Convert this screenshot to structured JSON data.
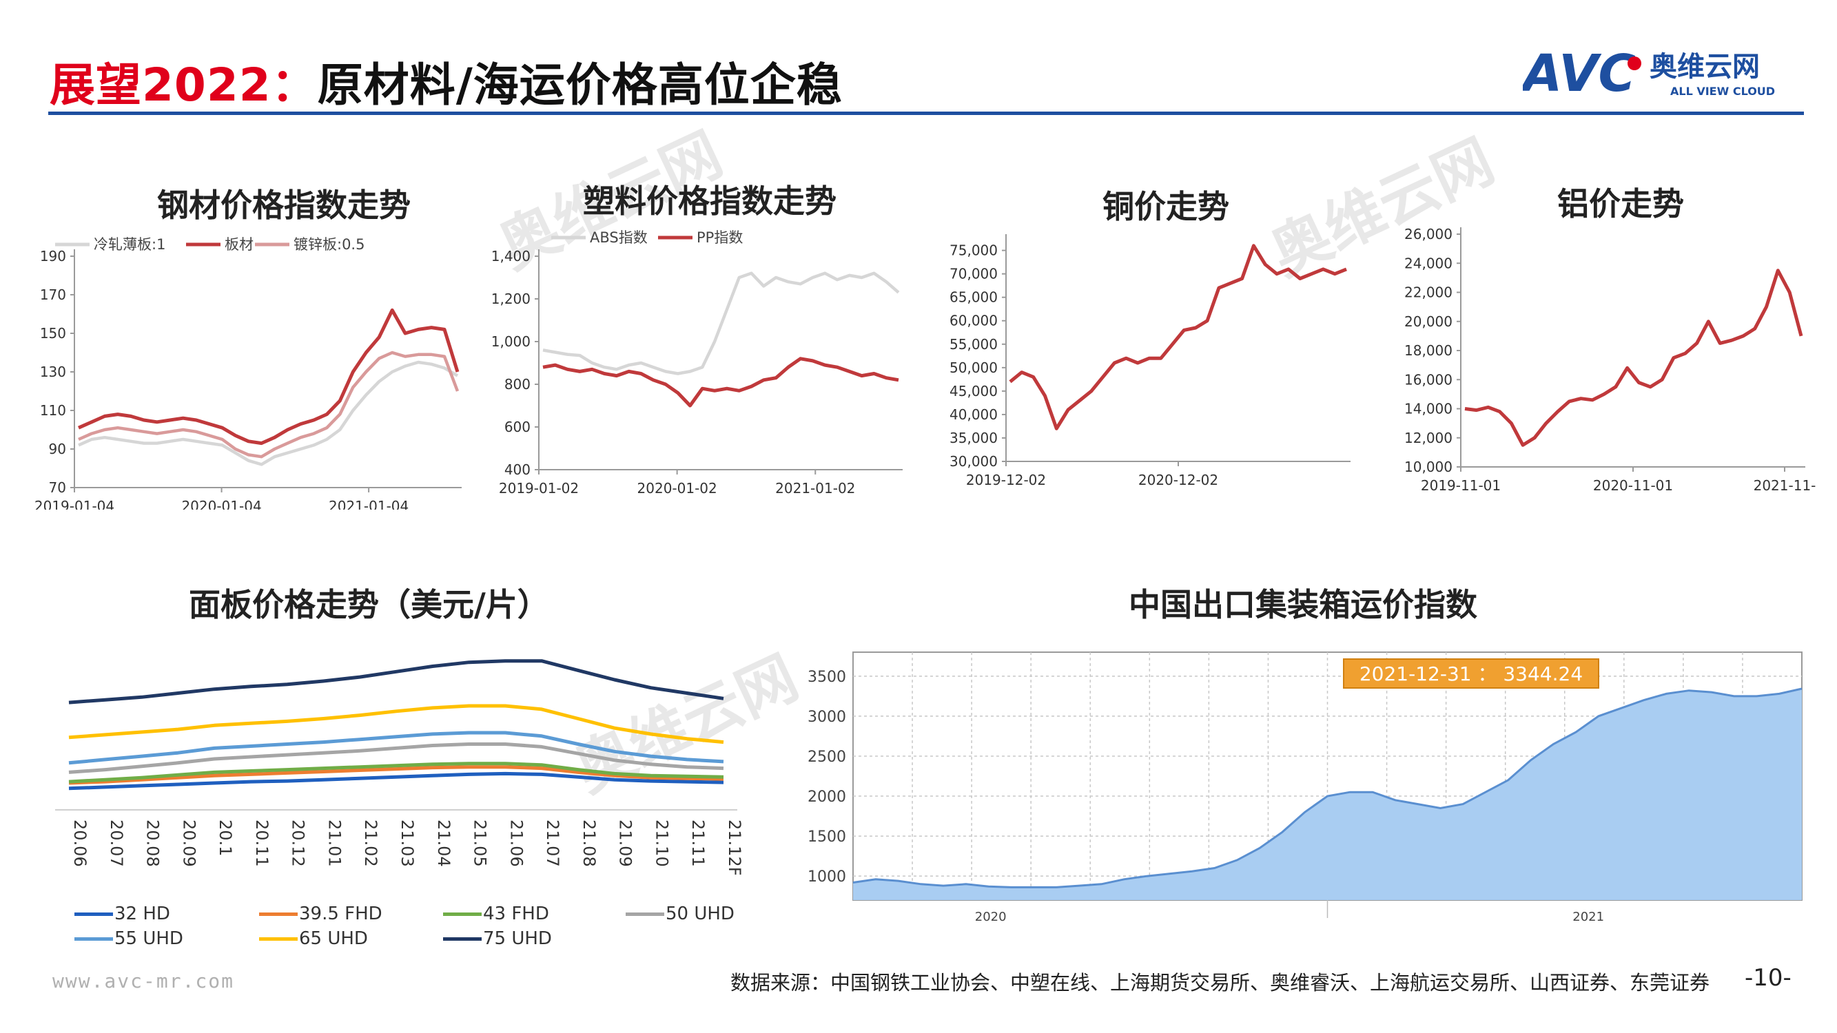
{
  "header": {
    "title_highlight": "展望2022：",
    "title_rest": "原材料/海运价格高位企稳",
    "logo_text_cn": "奥维云网",
    "logo_text_en": "ALL VIEW CLOUD",
    "logo_mark": "AVC"
  },
  "footer": {
    "website": "www.avc-mr.com",
    "source": "数据来源：中国钢铁工业协会、中塑在线、上海期货交易所、奥维睿沃、上海航运交易所、山西证券、东莞证券",
    "page": "-10-"
  },
  "watermark": {
    "text_cn": "奥维云网",
    "text_en": "VIEW CLOUD",
    "mark": "AVC"
  },
  "colors": {
    "accent_red": "#e0001b",
    "rule_blue": "#1e4fa0",
    "line_red": "#c0393b",
    "line_pink": "#d99a9a",
    "line_grey": "#d6d6d6",
    "area_blue": "#a9cdf2"
  },
  "chart_data": [
    {
      "type": "line",
      "title": "钢材价格指数走势",
      "x_ticks": [
        "2019-01-04",
        "2020-01-04",
        "2021-01-04"
      ],
      "y_ticks": [
        "70",
        "90",
        "110",
        "130",
        "150",
        "170",
        "190"
      ],
      "ylim": [
        70,
        190
      ],
      "legend_position": "top",
      "series": [
        {
          "name": "冷轧薄板:1",
          "color": "#d6d6d6",
          "values": [
            92,
            95,
            96,
            95,
            94,
            93,
            93,
            94,
            95,
            94,
            93,
            92,
            88,
            84,
            82,
            86,
            88,
            90,
            92,
            95,
            100,
            110,
            118,
            125,
            130,
            133,
            135,
            134,
            132,
            128
          ]
        },
        {
          "name": "板材",
          "color": "#c0393b",
          "values": [
            101,
            104,
            107,
            108,
            107,
            105,
            104,
            105,
            106,
            105,
            103,
            101,
            97,
            94,
            93,
            96,
            100,
            103,
            105,
            108,
            115,
            130,
            140,
            148,
            162,
            150,
            152,
            153,
            152,
            130
          ]
        },
        {
          "name": "镀锌板:0.5",
          "color": "#d99a9a",
          "values": [
            95,
            98,
            100,
            101,
            100,
            99,
            98,
            99,
            100,
            99,
            97,
            95,
            90,
            87,
            86,
            90,
            93,
            96,
            98,
            101,
            108,
            122,
            130,
            137,
            140,
            138,
            139,
            139,
            138,
            120
          ]
        }
      ]
    },
    {
      "type": "line",
      "title": "塑料价格指数走势",
      "x_ticks": [
        "2019-01-02",
        "2020-01-02",
        "2021-01-02"
      ],
      "y_ticks": [
        "400",
        "600",
        "800",
        "1,000",
        "1,200",
        "1,400"
      ],
      "ylim": [
        400,
        1400
      ],
      "legend_position": "top",
      "series": [
        {
          "name": "ABS指数",
          "color": "#d6d6d6",
          "values": [
            960,
            950,
            940,
            935,
            900,
            880,
            870,
            890,
            900,
            880,
            860,
            850,
            860,
            880,
            1000,
            1150,
            1300,
            1320,
            1260,
            1300,
            1280,
            1270,
            1300,
            1320,
            1290,
            1310,
            1300,
            1320,
            1280,
            1230
          ]
        },
        {
          "name": "PP指数",
          "color": "#c0393b",
          "values": [
            880,
            890,
            870,
            860,
            870,
            850,
            840,
            860,
            850,
            820,
            800,
            760,
            700,
            780,
            770,
            780,
            770,
            790,
            820,
            830,
            880,
            920,
            910,
            890,
            880,
            860,
            840,
            850,
            830,
            820
          ]
        }
      ]
    },
    {
      "type": "line",
      "title": "铜价走势",
      "x_ticks": [
        "2019-12-02",
        "2020-12-02"
      ],
      "y_ticks": [
        "30,000",
        "35,000",
        "40,000",
        "45,000",
        "50,000",
        "55,000",
        "60,000",
        "65,000",
        "70,000",
        "75,000"
      ],
      "ylim": [
        30000,
        77000
      ],
      "series": [
        {
          "name": "",
          "color": "#c0393b",
          "values": [
            47000,
            49000,
            48000,
            44000,
            37000,
            41000,
            43000,
            45000,
            48000,
            51000,
            52000,
            51000,
            52000,
            52000,
            55000,
            58000,
            58500,
            60000,
            67000,
            68000,
            69000,
            76000,
            72000,
            70000,
            71000,
            69000,
            70000,
            71000,
            70000,
            71000
          ]
        }
      ]
    },
    {
      "type": "line",
      "title": "铝价走势",
      "x_ticks": [
        "2019-11-01",
        "2020-11-01",
        "2021-11-"
      ],
      "y_ticks": [
        "10,000",
        "12,000",
        "14,000",
        "16,000",
        "18,000",
        "20,000",
        "22,000",
        "24,000",
        "26,000"
      ],
      "ylim": [
        10000,
        26000
      ],
      "series": [
        {
          "name": "",
          "color": "#c0393b",
          "values": [
            14000,
            13900,
            14100,
            13800,
            13000,
            11500,
            12000,
            13000,
            13800,
            14500,
            14700,
            14600,
            15000,
            15500,
            16800,
            15800,
            15500,
            16000,
            17500,
            17800,
            18500,
            20000,
            18500,
            18700,
            19000,
            19500,
            21000,
            23500,
            22000,
            19000
          ]
        }
      ]
    },
    {
      "type": "line",
      "title": "面板价格走势（美元/片）",
      "categories": [
        "20.06",
        "20.07",
        "20.08",
        "20.09",
        "20.1",
        "20.11",
        "20.12",
        "21.01",
        "21.02",
        "21.03",
        "21.04",
        "21.05",
        "21.06",
        "21.07",
        "21.08",
        "21.09",
        "21.10",
        "21.11",
        "21.12F"
      ],
      "legend_position": "bottom",
      "series": [
        {
          "name": "32 HD",
          "color": "#1f5fbf",
          "values": [
            32,
            34,
            36,
            38,
            40,
            42,
            43,
            45,
            47,
            49,
            51,
            53,
            54,
            53,
            49,
            45,
            43,
            42,
            41
          ]
        },
        {
          "name": "39.5 FHD",
          "color": "#ed7d31",
          "values": [
            40,
            42,
            45,
            48,
            51,
            53,
            55,
            57,
            59,
            61,
            63,
            64,
            64,
            62,
            56,
            51,
            48,
            47,
            46
          ]
        },
        {
          "name": "43 FHD",
          "color": "#70ad47",
          "values": [
            42,
            45,
            48,
            52,
            56,
            58,
            60,
            62,
            64,
            66,
            68,
            69,
            69,
            67,
            60,
            54,
            51,
            50,
            49
          ]
        },
        {
          "name": "50 UHD",
          "color": "#a5a5a5",
          "values": [
            56,
            60,
            65,
            70,
            76,
            79,
            82,
            85,
            88,
            92,
            96,
            98,
            98,
            94,
            84,
            74,
            68,
            64,
            62
          ]
        },
        {
          "name": "55 UHD",
          "color": "#5b9bd5",
          "values": [
            70,
            75,
            80,
            85,
            92,
            95,
            98,
            101,
            105,
            109,
            113,
            115,
            115,
            110,
            98,
            87,
            80,
            75,
            72
          ]
        },
        {
          "name": "65 UHD",
          "color": "#ffc000",
          "values": [
            108,
            112,
            116,
            120,
            126,
            129,
            132,
            136,
            141,
            147,
            152,
            155,
            155,
            150,
            136,
            122,
            113,
            106,
            101
          ]
        },
        {
          "name": "75 UHD",
          "color": "#203864",
          "values": [
            160,
            164,
            168,
            174,
            180,
            184,
            187,
            192,
            198,
            206,
            214,
            220,
            222,
            222,
            208,
            194,
            182,
            174,
            166
          ]
        }
      ]
    },
    {
      "type": "area",
      "title": "中国出口集装箱运价指数",
      "x_ticks": [
        "2020",
        "2021"
      ],
      "y_ticks": [
        "1000",
        "1500",
        "2000",
        "2500",
        "3000",
        "3500"
      ],
      "ylim": [
        700,
        3800
      ],
      "annotation": "2021-12-31 ： 3344.24",
      "series": [
        {
          "name": "",
          "color": "#a9cdf2",
          "values": [
            920,
            960,
            940,
            900,
            880,
            900,
            870,
            860,
            860,
            860,
            880,
            900,
            960,
            1000,
            1030,
            1060,
            1100,
            1200,
            1350,
            1550,
            1800,
            2000,
            2050,
            2050,
            1950,
            1900,
            1850,
            1900,
            2050,
            2200,
            2450,
            2650,
            2800,
            3000,
            3100,
            3200,
            3280,
            3320,
            3300,
            3250,
            3250,
            3280,
            3344
          ]
        }
      ]
    }
  ]
}
